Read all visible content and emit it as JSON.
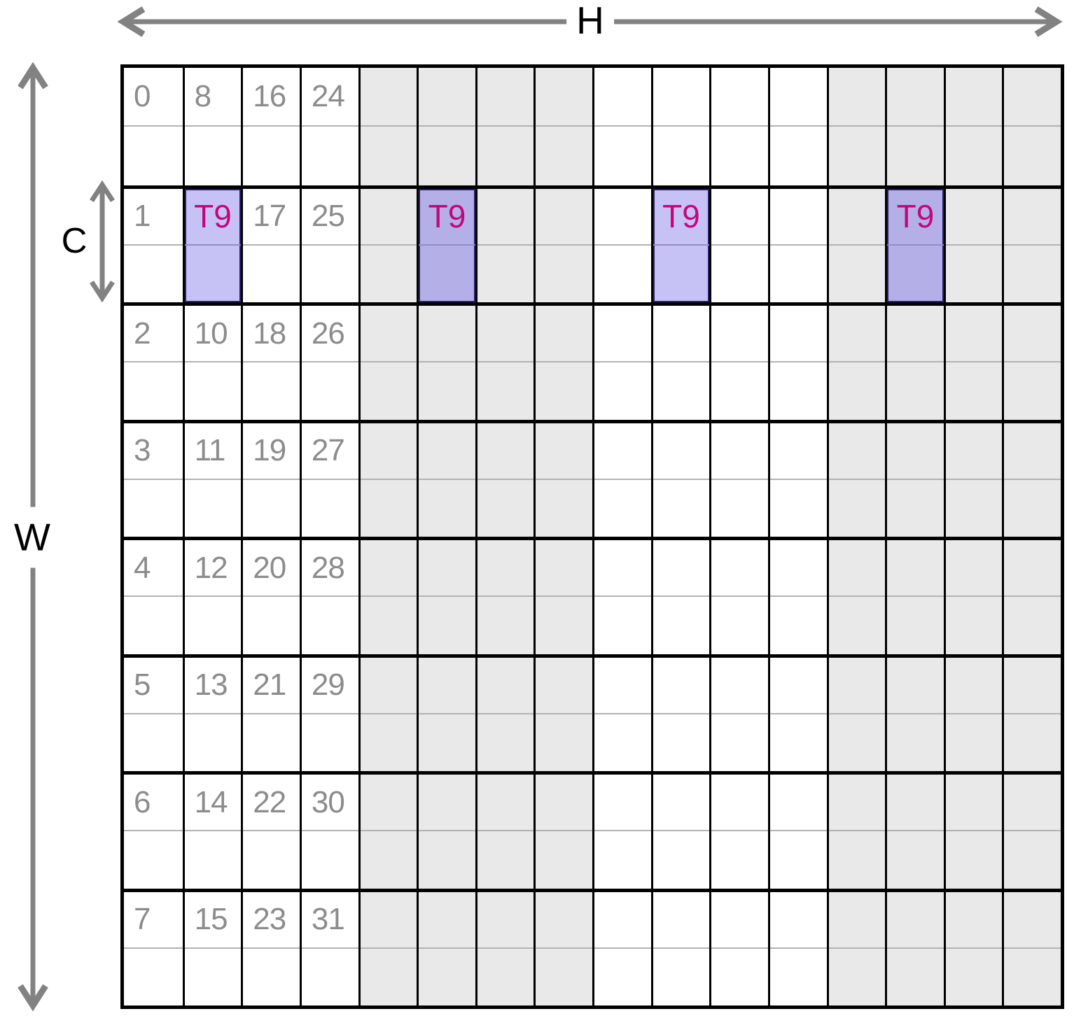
{
  "labels": {
    "h": "H",
    "w": "W",
    "c": "C"
  },
  "grid": {
    "cols": 16,
    "rows": 8,
    "sub_rows_per_row": 2,
    "shaded_cols": [
      4,
      5,
      6,
      7,
      12,
      13,
      14,
      15
    ],
    "numbers": [
      [
        "0",
        "8",
        "16",
        "24"
      ],
      [
        "1",
        "",
        "17",
        "25"
      ],
      [
        "2",
        "10",
        "18",
        "26"
      ],
      [
        "3",
        "11",
        "19",
        "27"
      ],
      [
        "4",
        "12",
        "20",
        "28"
      ],
      [
        "5",
        "13",
        "21",
        "29"
      ],
      [
        "6",
        "14",
        "22",
        "30"
      ],
      [
        "7",
        "15",
        "23",
        "31"
      ]
    ]
  },
  "tile": {
    "label": "T9",
    "row": 1,
    "cols": [
      1,
      5,
      9,
      13
    ]
  },
  "icons": {
    "h_arrow": "double-arrow-horizontal-icon",
    "w_arrow": "double-arrow-vertical-icon",
    "c_arrow": "double-arrow-vertical-small-icon"
  },
  "colors": {
    "arrow": "#828282",
    "grid_line": "#000000",
    "sub_divider": "#b3b3b3",
    "shaded_cell": "#e9e9e9",
    "number_text": "#8c8c8c",
    "tile_text": "#c2077c",
    "highlight_on_white": "#c7c2f5",
    "highlight_on_shaded": "#b4afe6",
    "highlight_outline": "#2a2166",
    "highlight_divider": "#938dc9",
    "label_text": "#000000"
  }
}
